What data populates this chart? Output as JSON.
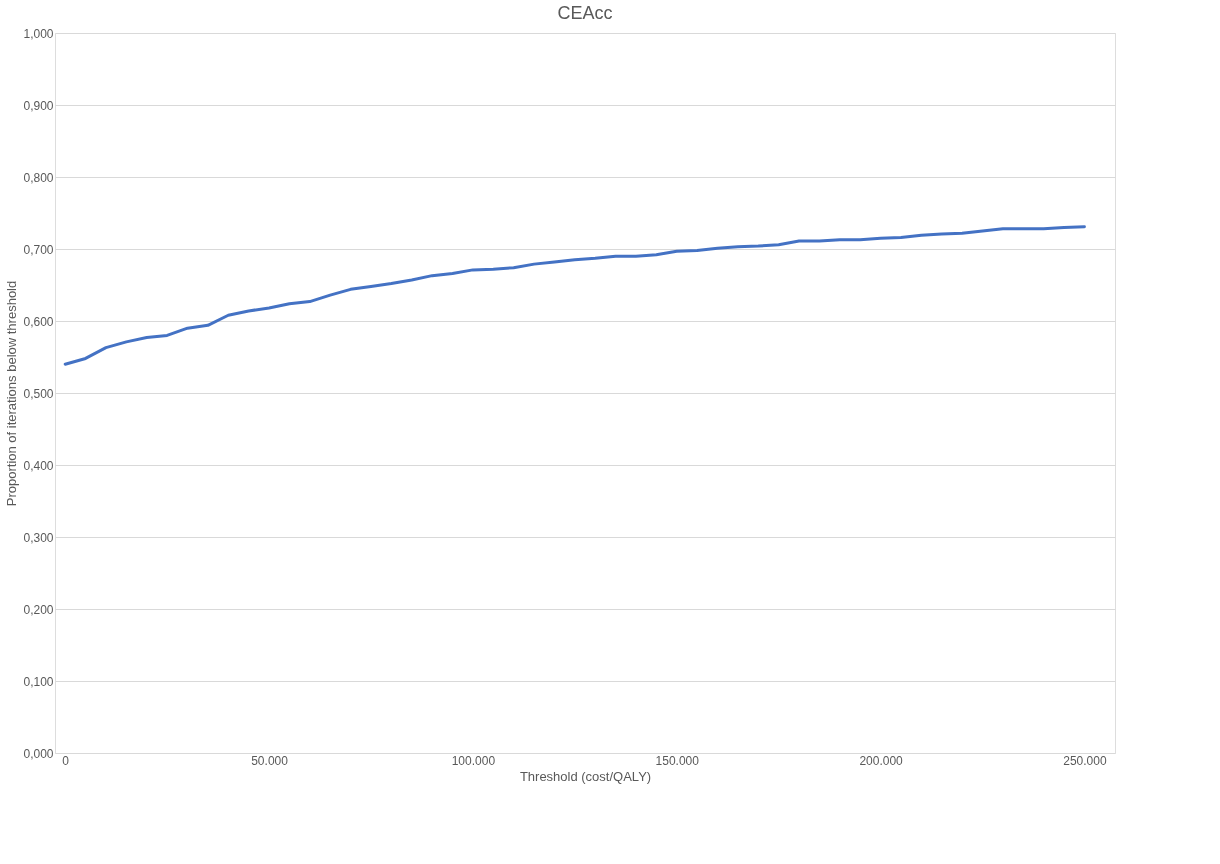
{
  "chart_data": {
    "type": "line",
    "title": "CEAcc",
    "xlabel": "Threshold (cost/QALY)",
    "ylabel": "Proportion of iterations below threshold",
    "x": [
      0,
      5000,
      10000,
      15000,
      20000,
      25000,
      30000,
      35000,
      40000,
      45000,
      50000,
      55000,
      60000,
      65000,
      70000,
      75000,
      80000,
      85000,
      90000,
      95000,
      100000,
      105000,
      110000,
      115000,
      120000,
      125000,
      130000,
      135000,
      140000,
      145000,
      150000,
      155000,
      160000,
      165000,
      170000,
      175000,
      180000,
      185000,
      190000,
      195000,
      200000,
      205000,
      210000,
      215000,
      220000,
      225000,
      230000,
      235000,
      240000,
      245000,
      250000
    ],
    "series": [
      {
        "color": "#4472c4",
        "values": [
          0.54,
          0.548,
          0.563,
          0.571,
          0.577,
          0.58,
          0.59,
          0.594,
          0.608,
          0.614,
          0.618,
          0.624,
          0.627,
          0.636,
          0.644,
          0.648,
          0.652,
          0.657,
          0.663,
          0.666,
          0.671,
          0.672,
          0.674,
          0.679,
          0.682,
          0.685,
          0.687,
          0.69,
          0.69,
          0.692,
          0.697,
          0.698,
          0.701,
          0.703,
          0.704,
          0.706,
          0.711,
          0.711,
          0.713,
          0.713,
          0.715,
          0.716,
          0.719,
          0.721,
          0.722,
          0.725,
          0.728,
          0.728,
          0.728,
          0.73,
          0.731
        ]
      }
    ],
    "xlim": [
      -2500,
      257500
    ],
    "xticks": [
      0,
      {
        "value": 50000,
        "label": "50.000"
      },
      {
        "value": 100000,
        "label": "100.000"
      },
      {
        "value": 150000,
        "label": "150.000"
      },
      {
        "value": 200000,
        "label": "200.000"
      },
      {
        "value": 250000,
        "label": "250.000"
      }
    ],
    "ylim": [
      0,
      1
    ],
    "yticks": [
      {
        "value": 0,
        "label": "0,000"
      },
      {
        "value": 0.1,
        "label": "0,100"
      },
      {
        "value": 0.2,
        "label": "0,200"
      },
      {
        "value": 0.3,
        "label": "0,300"
      },
      {
        "value": 0.4,
        "label": "0,400"
      },
      {
        "value": 0.5,
        "label": "0,500"
      },
      {
        "value": 0.6,
        "label": "0,600"
      },
      {
        "value": 0.7,
        "label": "0,700"
      },
      {
        "value": 0.8,
        "label": "0,800"
      },
      {
        "value": 0.9,
        "label": "0,900"
      },
      {
        "value": 1,
        "label": "1,000"
      }
    ],
    "grid": "y",
    "legend": false,
    "marker": "none",
    "line_style": "solid"
  }
}
